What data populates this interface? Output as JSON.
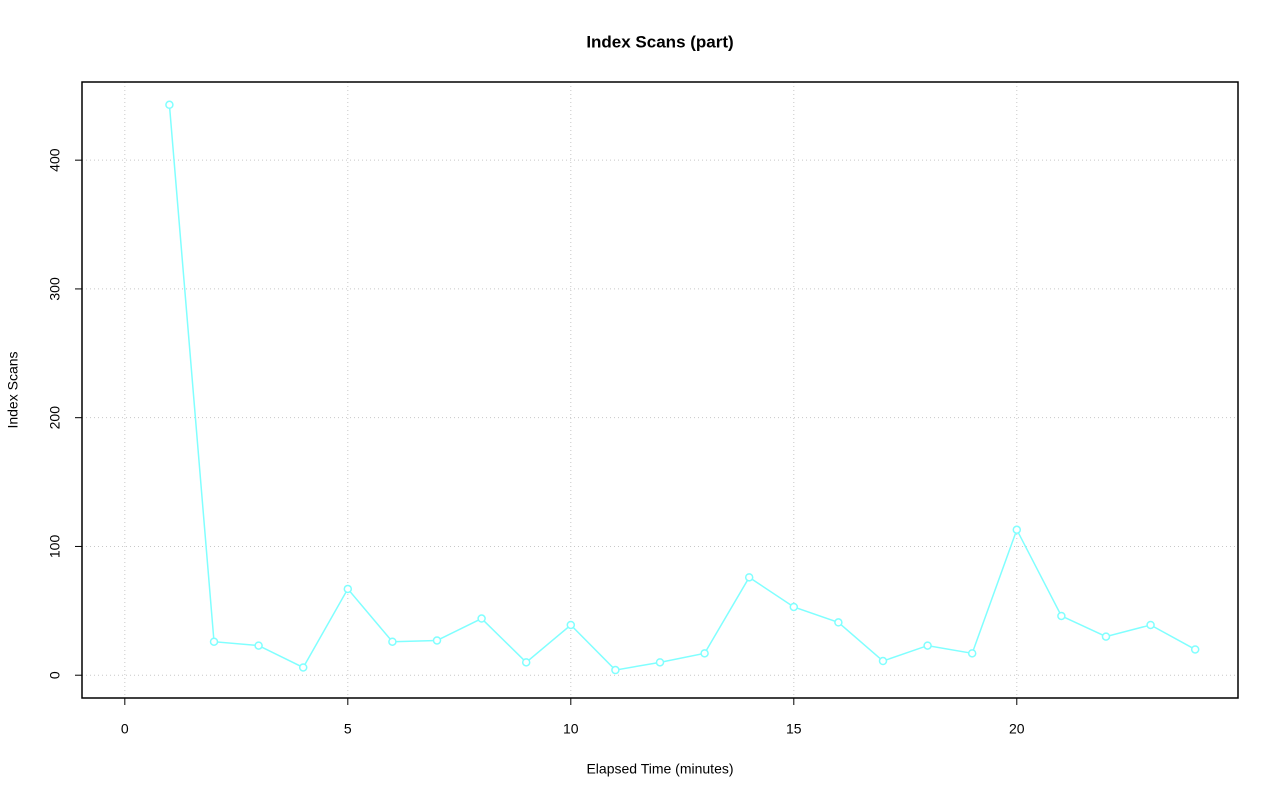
{
  "chart_data": {
    "type": "line",
    "title": "Index Scans (part)",
    "x_label": "Elapsed Time (minutes)",
    "y_label": "Index Scans",
    "x": [
      1,
      2,
      3,
      4,
      5,
      6,
      7,
      8,
      9,
      10,
      11,
      12,
      13,
      14,
      15,
      16,
      17,
      18,
      19,
      20,
      21,
      22,
      23,
      24
    ],
    "series": [
      {
        "name": "Index Scans",
        "color": "#80ffff",
        "values": [
          443,
          26,
          23,
          6,
          67,
          26,
          27,
          44,
          10,
          39,
          4,
          10,
          17,
          76,
          53,
          41,
          11,
          23,
          17,
          113,
          46,
          30,
          39,
          20
        ]
      }
    ],
    "xlim": [
      -0.96,
      24.96
    ],
    "xticks": [
      0,
      5,
      10,
      15,
      20
    ],
    "ylim": [
      -17.7,
      460.7
    ],
    "yticks": [
      0,
      100,
      200,
      300,
      400
    ],
    "grid": true
  }
}
